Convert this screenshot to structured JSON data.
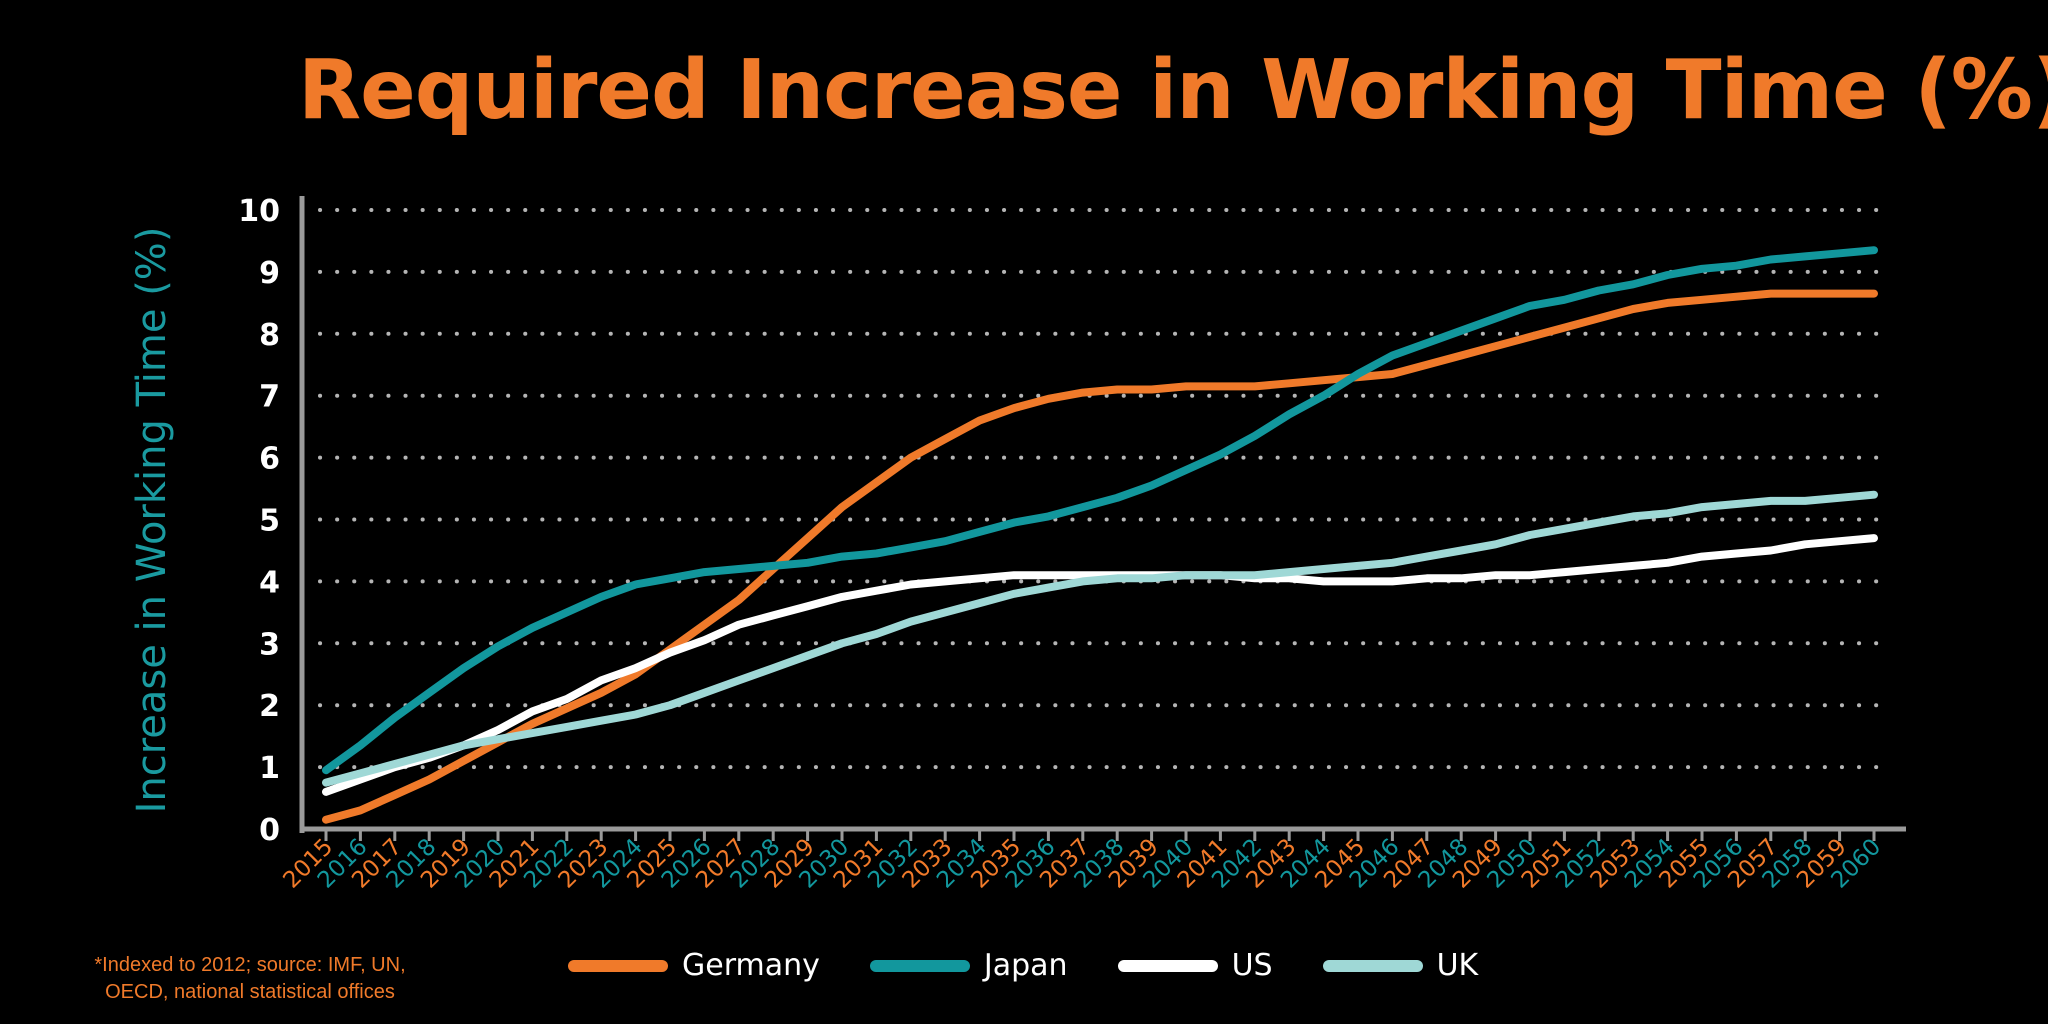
{
  "chart_data": {
    "type": "line",
    "title": "Required Increase in Working Time (%)*",
    "ylabel": "Increase in Working Time (%)",
    "xlabel": "",
    "ylim": [
      0,
      10
    ],
    "yticks": [
      "0",
      "1",
      "2",
      "3",
      "4",
      "5",
      "6",
      "7",
      "8",
      "9",
      "10"
    ],
    "grid": "dotted-horizontal",
    "legend_position": "bottom",
    "x": [
      "2015",
      "2016",
      "2017",
      "2018",
      "2019",
      "2020",
      "2021",
      "2022",
      "2023",
      "2024",
      "2025",
      "2026",
      "2027",
      "2028",
      "2029",
      "2030",
      "2031",
      "2032",
      "2033",
      "2034",
      "2035",
      "2036",
      "2037",
      "2038",
      "2039",
      "2040",
      "2041",
      "2042",
      "2043",
      "2044",
      "2045",
      "2046",
      "2047",
      "2048",
      "2049",
      "2050",
      "2051",
      "2052",
      "2053",
      "2054",
      "2055",
      "2056",
      "2057",
      "2058",
      "2059",
      "2060"
    ],
    "series": [
      {
        "name": "Germany",
        "color": "#F07A2A",
        "values": [
          0.15,
          0.3,
          0.55,
          0.8,
          1.1,
          1.4,
          1.7,
          1.95,
          2.2,
          2.5,
          2.9,
          3.3,
          3.7,
          4.2,
          4.7,
          5.2,
          5.6,
          6.0,
          6.3,
          6.6,
          6.8,
          6.95,
          7.05,
          7.1,
          7.1,
          7.15,
          7.15,
          7.15,
          7.2,
          7.25,
          7.3,
          7.35,
          7.5,
          7.65,
          7.8,
          7.95,
          8.1,
          8.25,
          8.4,
          8.5,
          8.55,
          8.6,
          8.65,
          8.65,
          8.65,
          8.65
        ]
      },
      {
        "name": "Japan",
        "color": "#12979D",
        "values": [
          0.95,
          1.35,
          1.8,
          2.2,
          2.6,
          2.95,
          3.25,
          3.5,
          3.75,
          3.95,
          4.05,
          4.15,
          4.2,
          4.25,
          4.3,
          4.4,
          4.45,
          4.55,
          4.65,
          4.8,
          4.95,
          5.05,
          5.2,
          5.35,
          5.55,
          5.8,
          6.05,
          6.35,
          6.7,
          7.0,
          7.35,
          7.65,
          7.85,
          8.05,
          8.25,
          8.45,
          8.55,
          8.7,
          8.8,
          8.95,
          9.05,
          9.1,
          9.2,
          9.25,
          9.3,
          9.35
        ]
      },
      {
        "name": "US",
        "color": "#FFFFFF",
        "values": [
          0.6,
          0.8,
          1.0,
          1.15,
          1.35,
          1.6,
          1.9,
          2.1,
          2.4,
          2.6,
          2.85,
          3.05,
          3.3,
          3.45,
          3.6,
          3.75,
          3.85,
          3.95,
          4.0,
          4.05,
          4.1,
          4.1,
          4.1,
          4.1,
          4.1,
          4.1,
          4.1,
          4.05,
          4.05,
          4.0,
          4.0,
          4.0,
          4.05,
          4.05,
          4.1,
          4.1,
          4.15,
          4.2,
          4.25,
          4.3,
          4.4,
          4.45,
          4.5,
          4.6,
          4.65,
          4.7
        ]
      },
      {
        "name": "UK",
        "color": "#9FD8D6",
        "values": [
          0.75,
          0.9,
          1.05,
          1.2,
          1.35,
          1.45,
          1.55,
          1.65,
          1.75,
          1.85,
          2.0,
          2.2,
          2.4,
          2.6,
          2.8,
          3.0,
          3.15,
          3.35,
          3.5,
          3.65,
          3.8,
          3.9,
          4.0,
          4.05,
          4.05,
          4.1,
          4.1,
          4.1,
          4.15,
          4.2,
          4.25,
          4.3,
          4.4,
          4.5,
          4.6,
          4.75,
          4.85,
          4.95,
          5.05,
          5.1,
          5.2,
          5.25,
          5.3,
          5.3,
          5.35,
          5.4
        ]
      }
    ],
    "x_tick_colors": [
      "#F07A2A",
      "#12979D"
    ],
    "axis_color": "#9A9A9A",
    "grid_color": "#B5B5B5"
  },
  "footnote": {
    "line1": "*Indexed to 2012; source: IMF, UN,",
    "line2": "OECD, national statistical offices"
  }
}
